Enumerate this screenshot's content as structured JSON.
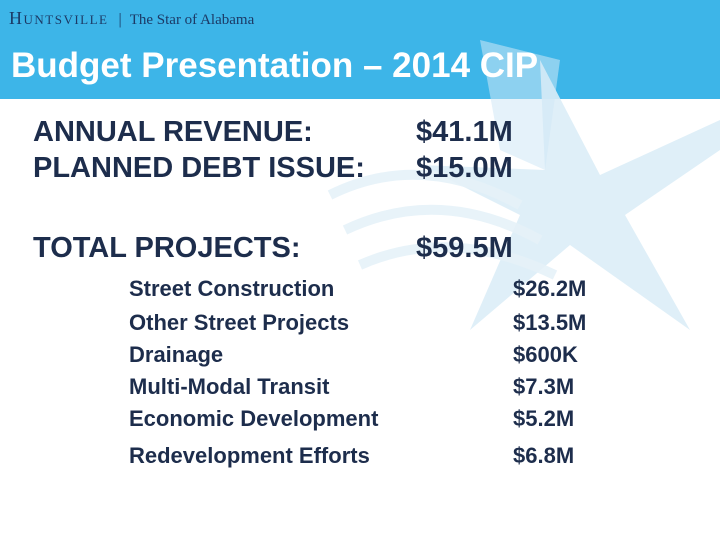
{
  "header": {
    "brand_city": "Huntsville",
    "brand_separator": "|",
    "brand_tagline": "The Star of Alabama",
    "title": "Budget Presentation – 2014 CIP"
  },
  "colors": {
    "header_band": "#3db5e8",
    "title_text": "#ffffff",
    "body_text": "#1d2d4c",
    "star_watermark": "#dcedf7"
  },
  "summary": [
    {
      "label": "ANNUAL REVENUE:",
      "value": "$41.1M"
    },
    {
      "label": "PLANNED DEBT ISSUE:",
      "value": "$15.0M"
    },
    {
      "label": "TOTAL PROJECTS:",
      "value": "$59.5M"
    }
  ],
  "projects": [
    {
      "label": "Street Construction",
      "value": "$26.2M"
    },
    {
      "label": "Other Street Projects",
      "value": "$13.5M"
    },
    {
      "label": "Drainage",
      "value": "$600K"
    },
    {
      "label": "Multi-Modal Transit",
      "value": "$7.3M"
    },
    {
      "label": "Economic Development",
      "value": "$5.2M"
    },
    {
      "label": "Redevelopment Efforts",
      "value": "$6.8M"
    }
  ]
}
